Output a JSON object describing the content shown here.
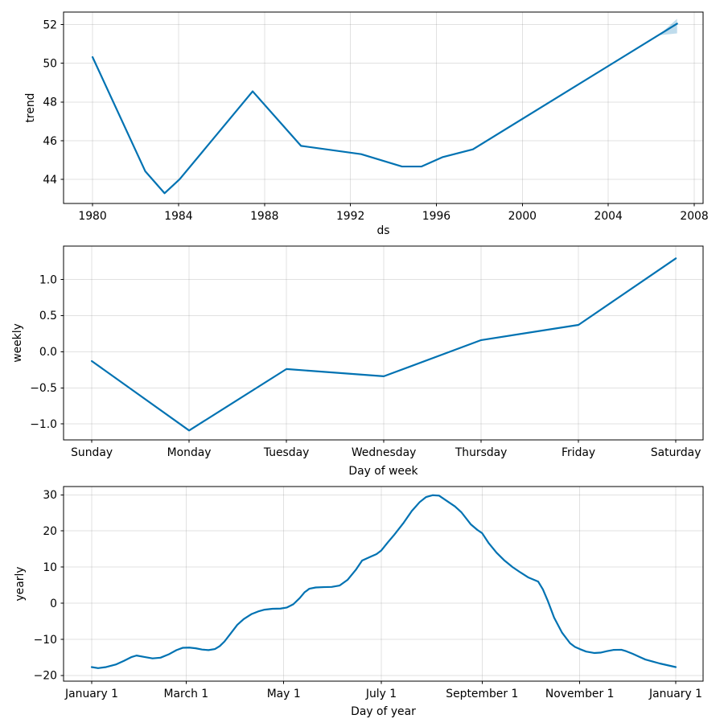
{
  "figure": {
    "background": "#ffffff",
    "line_color": "#0072B2",
    "band_color": "#0072B2",
    "band_opacity": 0.25,
    "grid_color": "rgba(128,128,128,0.24)",
    "spine_color": "#000000",
    "tick_color": "#000000",
    "text_color": "#000000"
  },
  "chart_data": [
    {
      "name": "trend",
      "type": "line",
      "xlabel": "ds",
      "ylabel": "trend",
      "xlim": [
        1978.65,
        2008.41
      ],
      "ylim": [
        42.75,
        52.65
      ],
      "grid": true,
      "x_ticks": [
        {
          "v": 1980,
          "label": "1980"
        },
        {
          "v": 1984,
          "label": "1984"
        },
        {
          "v": 1988,
          "label": "1988"
        },
        {
          "v": 1992,
          "label": "1992"
        },
        {
          "v": 1996,
          "label": "1996"
        },
        {
          "v": 2000,
          "label": "2000"
        },
        {
          "v": 2004,
          "label": "2004"
        },
        {
          "v": 2008,
          "label": "2008"
        }
      ],
      "y_ticks": [
        {
          "v": 44,
          "label": "44"
        },
        {
          "v": 46,
          "label": "46"
        },
        {
          "v": 48,
          "label": "48"
        },
        {
          "v": 50,
          "label": "50"
        },
        {
          "v": 52,
          "label": "52"
        }
      ],
      "line": [
        [
          1980.0,
          50.32
        ],
        [
          1982.45,
          44.42
        ],
        [
          1983.35,
          43.28
        ],
        [
          1984.05,
          44.0
        ],
        [
          1987.45,
          48.55
        ],
        [
          1989.7,
          45.73
        ],
        [
          1992.5,
          45.3
        ],
        [
          1994.4,
          44.66
        ],
        [
          1995.3,
          44.66
        ],
        [
          1996.3,
          45.15
        ],
        [
          1997.7,
          45.55
        ],
        [
          2007.2,
          52.05
        ]
      ],
      "band": {
        "x": [
          2006.35,
          2007.2
        ],
        "lower": [
          51.45,
          51.55
        ],
        "upper": [
          51.45,
          52.3
        ]
      }
    },
    {
      "name": "weekly",
      "type": "line",
      "xlabel": "Day of week",
      "ylabel": "weekly",
      "xlim": [
        -0.29,
        6.28
      ],
      "ylim": [
        -1.22,
        1.46
      ],
      "grid": true,
      "x_ticks": [
        {
          "v": 0,
          "label": "Sunday"
        },
        {
          "v": 1,
          "label": "Monday"
        },
        {
          "v": 2,
          "label": "Tuesday"
        },
        {
          "v": 3,
          "label": "Wednesday"
        },
        {
          "v": 4,
          "label": "Thursday"
        },
        {
          "v": 5,
          "label": "Friday"
        },
        {
          "v": 6,
          "label": "Saturday"
        }
      ],
      "y_ticks": [
        {
          "v": -1.0,
          "label": "−1.0"
        },
        {
          "v": -0.5,
          "label": "−0.5"
        },
        {
          "v": 0.0,
          "label": "0.0"
        },
        {
          "v": 0.5,
          "label": "0.5"
        },
        {
          "v": 1.0,
          "label": "1.0"
        }
      ],
      "line": [
        [
          0,
          -0.13
        ],
        [
          1,
          -1.09
        ],
        [
          2,
          -0.24
        ],
        [
          3,
          -0.34
        ],
        [
          4,
          0.16
        ],
        [
          5,
          0.37
        ],
        [
          6,
          1.29
        ]
      ]
    },
    {
      "name": "yearly",
      "type": "line",
      "xlabel": "Day of year",
      "ylabel": "yearly",
      "xlim": [
        -17.6,
        382.1
      ],
      "ylim": [
        -21.6,
        32.3
      ],
      "grid": true,
      "x_ticks": [
        {
          "v": 0,
          "label": "January 1"
        },
        {
          "v": 59,
          "label": "March 1"
        },
        {
          "v": 120,
          "label": "May 1"
        },
        {
          "v": 181,
          "label": "July 1"
        },
        {
          "v": 244,
          "label": "September 1"
        },
        {
          "v": 305,
          "label": "November 1"
        },
        {
          "v": 365,
          "label": "January 1"
        }
      ],
      "y_ticks": [
        {
          "v": -20,
          "label": "−20"
        },
        {
          "v": -10,
          "label": "−10"
        },
        {
          "v": 0,
          "label": "0"
        },
        {
          "v": 10,
          "label": "10"
        },
        {
          "v": 20,
          "label": "20"
        },
        {
          "v": 30,
          "label": "30"
        }
      ],
      "line": [
        [
          0,
          -17.7
        ],
        [
          4,
          -18.0
        ],
        [
          9,
          -17.7
        ],
        [
          15,
          -17.0
        ],
        [
          20,
          -16.0
        ],
        [
          25,
          -14.9
        ],
        [
          28,
          -14.5
        ],
        [
          33,
          -14.9
        ],
        [
          38,
          -15.3
        ],
        [
          43,
          -15.1
        ],
        [
          48,
          -14.2
        ],
        [
          53,
          -13.0
        ],
        [
          57,
          -12.35
        ],
        [
          61,
          -12.3
        ],
        [
          65,
          -12.5
        ],
        [
          69,
          -12.85
        ],
        [
          73,
          -13.0
        ],
        [
          77,
          -12.7
        ],
        [
          80,
          -11.9
        ],
        [
          83,
          -10.6
        ],
        [
          87,
          -8.3
        ],
        [
          91,
          -6.0
        ],
        [
          95,
          -4.4
        ],
        [
          100,
          -3.0
        ],
        [
          104,
          -2.3
        ],
        [
          108,
          -1.8
        ],
        [
          113,
          -1.55
        ],
        [
          118,
          -1.5
        ],
        [
          122,
          -1.2
        ],
        [
          126,
          -0.3
        ],
        [
          130,
          1.4
        ],
        [
          133,
          3.0
        ],
        [
          136,
          4.0
        ],
        [
          140,
          4.35
        ],
        [
          145,
          4.45
        ],
        [
          150,
          4.5
        ],
        [
          155,
          4.9
        ],
        [
          160,
          6.5
        ],
        [
          165,
          9.2
        ],
        [
          169,
          11.8
        ],
        [
          174,
          12.8
        ],
        [
          178,
          13.6
        ],
        [
          181,
          14.6
        ],
        [
          185,
          16.8
        ],
        [
          189,
          18.9
        ],
        [
          195,
          22.3
        ],
        [
          200,
          25.5
        ],
        [
          205,
          28.0
        ],
        [
          209,
          29.4
        ],
        [
          213,
          29.9
        ],
        [
          217,
          29.8
        ],
        [
          222,
          28.3
        ],
        [
          227,
          26.8
        ],
        [
          231,
          25.2
        ],
        [
          237,
          21.8
        ],
        [
          241,
          20.3
        ],
        [
          244,
          19.4
        ],
        [
          248,
          16.7
        ],
        [
          253,
          14.0
        ],
        [
          258,
          11.8
        ],
        [
          263,
          10.0
        ],
        [
          268,
          8.5
        ],
        [
          273,
          7.1
        ],
        [
          279,
          6.0
        ],
        [
          282,
          3.8
        ],
        [
          285,
          0.7
        ],
        [
          289,
          -4.0
        ],
        [
          294,
          -8.2
        ],
        [
          299,
          -11.1
        ],
        [
          302,
          -12.1
        ],
        [
          305,
          -12.7
        ],
        [
          309,
          -13.4
        ],
        [
          314,
          -13.8
        ],
        [
          318,
          -13.7
        ],
        [
          322,
          -13.3
        ],
        [
          326,
          -12.95
        ],
        [
          331,
          -12.9
        ],
        [
          334,
          -13.3
        ],
        [
          338,
          -14.0
        ],
        [
          342,
          -14.8
        ],
        [
          346,
          -15.6
        ],
        [
          351,
          -16.2
        ],
        [
          355,
          -16.7
        ],
        [
          360,
          -17.2
        ],
        [
          365,
          -17.7
        ]
      ]
    }
  ]
}
